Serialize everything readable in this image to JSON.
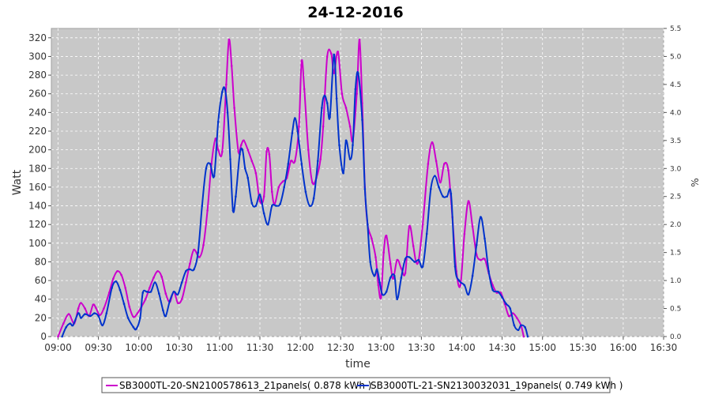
{
  "chart_data": {
    "type": "line",
    "title": "24-12-2016",
    "xlabel": "time",
    "ylabel": "Watt",
    "y2label": "%",
    "xlim": [
      "08:55",
      "16:30"
    ],
    "ylim": [
      0,
      330
    ],
    "y2lim": [
      0,
      5.5
    ],
    "x_ticks": [
      "09:00",
      "09:30",
      "10:00",
      "10:30",
      "11:00",
      "11:30",
      "12:00",
      "12:30",
      "13:00",
      "13:30",
      "14:00",
      "14:30",
      "15:00",
      "15:30",
      "16:00",
      "16:30"
    ],
    "y_ticks": [
      0,
      20,
      40,
      60,
      80,
      100,
      120,
      140,
      160,
      180,
      200,
      220,
      240,
      260,
      280,
      300,
      320
    ],
    "y2_ticks": [
      "0.0",
      "0.5",
      "1.0",
      "1.5",
      "2.0",
      "2.5",
      "3.0",
      "3.5",
      "4.0",
      "4.5",
      "5.0",
      "5.5"
    ],
    "grid": true,
    "legend_position": "bottom",
    "background": "#c8c8c8",
    "series": [
      {
        "name": "SB3000TL-20-SN2100578613_21panels( 0.878 kWh )",
        "color": "#cc00cc",
        "points": [
          [
            "09:00",
            0
          ],
          [
            "09:04",
            14
          ],
          [
            "09:08",
            24
          ],
          [
            "09:12",
            14
          ],
          [
            "09:15",
            30
          ],
          [
            "09:17",
            36
          ],
          [
            "09:20",
            30
          ],
          [
            "09:23",
            22
          ],
          [
            "09:26",
            34
          ],
          [
            "09:28",
            31
          ],
          [
            "09:31",
            23
          ],
          [
            "09:34",
            30
          ],
          [
            "09:38",
            47
          ],
          [
            "09:41",
            62
          ],
          [
            "09:44",
            70
          ],
          [
            "09:47",
            66
          ],
          [
            "09:50",
            52
          ],
          [
            "09:53",
            32
          ],
          [
            "09:56",
            21
          ],
          [
            "09:59",
            25
          ],
          [
            "10:02",
            32
          ],
          [
            "10:05",
            40
          ],
          [
            "10:08",
            52
          ],
          [
            "10:11",
            63
          ],
          [
            "10:14",
            70
          ],
          [
            "10:17",
            64
          ],
          [
            "10:20",
            46
          ],
          [
            "10:23",
            37
          ],
          [
            "10:26",
            48
          ],
          [
            "10:29",
            36
          ],
          [
            "10:32",
            40
          ],
          [
            "10:35",
            58
          ],
          [
            "10:38",
            78
          ],
          [
            "10:41",
            93
          ],
          [
            "10:45",
            85
          ],
          [
            "10:48",
            98
          ],
          [
            "10:51",
            135
          ],
          [
            "10:54",
            185
          ],
          [
            "10:57",
            212
          ],
          [
            "10:59",
            200
          ],
          [
            "11:02",
            198
          ],
          [
            "11:05",
            270
          ],
          [
            "11:07",
            318
          ],
          [
            "11:09",
            290
          ],
          [
            "11:11",
            245
          ],
          [
            "11:14",
            198
          ],
          [
            "11:16",
            205
          ],
          [
            "11:18",
            210
          ],
          [
            "11:21",
            200
          ],
          [
            "11:24",
            188
          ],
          [
            "11:27",
            175
          ],
          [
            "11:30",
            145
          ],
          [
            "11:33",
            150
          ],
          [
            "11:35",
            198
          ],
          [
            "11:37",
            195
          ],
          [
            "11:39",
            155
          ],
          [
            "11:41",
            142
          ],
          [
            "11:44",
            160
          ],
          [
            "11:47",
            166
          ],
          [
            "11:50",
            170
          ],
          [
            "11:53",
            188
          ],
          [
            "11:56",
            188
          ],
          [
            "11:59",
            225
          ],
          [
            "12:01",
            295
          ],
          [
            "12:03",
            265
          ],
          [
            "12:06",
            200
          ],
          [
            "12:09",
            165
          ],
          [
            "12:12",
            170
          ],
          [
            "12:15",
            190
          ],
          [
            "12:17",
            225
          ],
          [
            "12:20",
            300
          ],
          [
            "12:23",
            303
          ],
          [
            "12:25",
            282
          ],
          [
            "12:28",
            305
          ],
          [
            "12:31",
            260
          ],
          [
            "12:34",
            245
          ],
          [
            "12:37",
            225
          ],
          [
            "12:39",
            210
          ],
          [
            "12:42",
            260
          ],
          [
            "12:44",
            318
          ],
          [
            "12:46",
            250
          ],
          [
            "12:48",
            160
          ],
          [
            "12:50",
            120
          ],
          [
            "12:53",
            105
          ],
          [
            "12:56",
            85
          ],
          [
            "12:58",
            55
          ],
          [
            "13:00",
            42
          ],
          [
            "13:02",
            90
          ],
          [
            "13:04",
            108
          ],
          [
            "13:07",
            78
          ],
          [
            "13:09",
            62
          ],
          [
            "13:12",
            82
          ],
          [
            "13:15",
            73
          ],
          [
            "13:18",
            68
          ],
          [
            "13:21",
            118
          ],
          [
            "13:24",
            97
          ],
          [
            "13:26",
            80
          ],
          [
            "13:28",
            82
          ],
          [
            "13:31",
            120
          ],
          [
            "13:35",
            185
          ],
          [
            "13:38",
            208
          ],
          [
            "13:41",
            188
          ],
          [
            "13:44",
            165
          ],
          [
            "13:47",
            185
          ],
          [
            "13:50",
            178
          ],
          [
            "13:53",
            128
          ],
          [
            "13:56",
            70
          ],
          [
            "13:59",
            55
          ],
          [
            "14:02",
            110
          ],
          [
            "14:05",
            145
          ],
          [
            "14:08",
            118
          ],
          [
            "14:11",
            88
          ],
          [
            "14:14",
            82
          ],
          [
            "14:17",
            83
          ],
          [
            "14:20",
            68
          ],
          [
            "14:23",
            55
          ],
          [
            "14:26",
            47
          ],
          [
            "14:29",
            47
          ],
          [
            "14:32",
            35
          ],
          [
            "14:35",
            22
          ],
          [
            "14:38",
            25
          ],
          [
            "14:41",
            20
          ],
          [
            "14:44",
            12
          ],
          [
            "14:46",
            0
          ]
        ]
      },
      {
        "name": "SB3000TL-21-SN2130032031_19panels( 0.749 kWh )",
        "color": "#0033cc",
        "points": [
          [
            "09:03",
            0
          ],
          [
            "09:06",
            10
          ],
          [
            "09:09",
            14
          ],
          [
            "09:11",
            12
          ],
          [
            "09:15",
            25
          ],
          [
            "09:17",
            20
          ],
          [
            "09:20",
            24
          ],
          [
            "09:24",
            22
          ],
          [
            "09:27",
            25
          ],
          [
            "09:30",
            22
          ],
          [
            "09:33",
            12
          ],
          [
            "09:36",
            25
          ],
          [
            "09:40",
            52
          ],
          [
            "09:43",
            59
          ],
          [
            "09:46",
            50
          ],
          [
            "09:49",
            35
          ],
          [
            "09:52",
            20
          ],
          [
            "09:56",
            10
          ],
          [
            "09:58",
            8
          ],
          [
            "10:01",
            20
          ],
          [
            "10:03",
            47
          ],
          [
            "10:06",
            48
          ],
          [
            "10:09",
            48
          ],
          [
            "10:12",
            58
          ],
          [
            "10:15",
            46
          ],
          [
            "10:18",
            28
          ],
          [
            "10:20",
            22
          ],
          [
            "10:23",
            38
          ],
          [
            "10:26",
            48
          ],
          [
            "10:29",
            45
          ],
          [
            "10:32",
            58
          ],
          [
            "10:35",
            70
          ],
          [
            "10:38",
            72
          ],
          [
            "10:41",
            72
          ],
          [
            "10:44",
            90
          ],
          [
            "10:47",
            140
          ],
          [
            "10:50",
            180
          ],
          [
            "10:53",
            185
          ],
          [
            "10:56",
            172
          ],
          [
            "10:59",
            230
          ],
          [
            "11:02",
            262
          ],
          [
            "11:04",
            265
          ],
          [
            "11:06",
            240
          ],
          [
            "11:08",
            190
          ],
          [
            "11:10",
            135
          ],
          [
            "11:12",
            150
          ],
          [
            "11:15",
            195
          ],
          [
            "11:17",
            200
          ],
          [
            "11:19",
            180
          ],
          [
            "11:21",
            170
          ],
          [
            "11:24",
            143
          ],
          [
            "11:27",
            140
          ],
          [
            "11:30",
            152
          ],
          [
            "11:33",
            132
          ],
          [
            "11:36",
            120
          ],
          [
            "11:39",
            140
          ],
          [
            "11:42",
            140
          ],
          [
            "11:45",
            142
          ],
          [
            "11:48",
            160
          ],
          [
            "11:51",
            185
          ],
          [
            "11:54",
            218
          ],
          [
            "11:56",
            234
          ],
          [
            "11:58",
            220
          ],
          [
            "12:01",
            185
          ],
          [
            "12:04",
            155
          ],
          [
            "12:07",
            140
          ],
          [
            "12:10",
            148
          ],
          [
            "12:13",
            188
          ],
          [
            "12:16",
            245
          ],
          [
            "12:18",
            258
          ],
          [
            "12:20",
            250
          ],
          [
            "12:22",
            235
          ],
          [
            "12:25",
            302
          ],
          [
            "12:27",
            255
          ],
          [
            "12:29",
            205
          ],
          [
            "12:32",
            175
          ],
          [
            "12:34",
            210
          ],
          [
            "12:37",
            190
          ],
          [
            "12:39",
            205
          ],
          [
            "12:41",
            265
          ],
          [
            "12:43",
            282
          ],
          [
            "12:46",
            232
          ],
          [
            "12:48",
            158
          ],
          [
            "12:50",
            120
          ],
          [
            "12:52",
            80
          ],
          [
            "12:55",
            65
          ],
          [
            "12:57",
            72
          ],
          [
            "12:59",
            58
          ],
          [
            "13:01",
            45
          ],
          [
            "13:04",
            48
          ],
          [
            "13:07",
            63
          ],
          [
            "13:10",
            65
          ],
          [
            "13:12",
            40
          ],
          [
            "13:15",
            63
          ],
          [
            "13:18",
            83
          ],
          [
            "13:21",
            85
          ],
          [
            "13:25",
            80
          ],
          [
            "13:28",
            82
          ],
          [
            "13:31",
            75
          ],
          [
            "13:34",
            110
          ],
          [
            "13:37",
            158
          ],
          [
            "13:40",
            172
          ],
          [
            "13:43",
            160
          ],
          [
            "13:46",
            150
          ],
          [
            "13:49",
            150
          ],
          [
            "13:52",
            153
          ],
          [
            "13:55",
            75
          ],
          [
            "13:58",
            60
          ],
          [
            "14:02",
            55
          ],
          [
            "14:05",
            45
          ],
          [
            "14:08",
            65
          ],
          [
            "14:11",
            98
          ],
          [
            "14:14",
            128
          ],
          [
            "14:17",
            105
          ],
          [
            "14:20",
            70
          ],
          [
            "14:23",
            50
          ],
          [
            "14:27",
            48
          ],
          [
            "14:30",
            42
          ],
          [
            "14:33",
            35
          ],
          [
            "14:36",
            30
          ],
          [
            "14:39",
            12
          ],
          [
            "14:42",
            7
          ],
          [
            "14:44",
            12
          ],
          [
            "14:47",
            10
          ],
          [
            "14:49",
            0
          ]
        ]
      }
    ]
  }
}
